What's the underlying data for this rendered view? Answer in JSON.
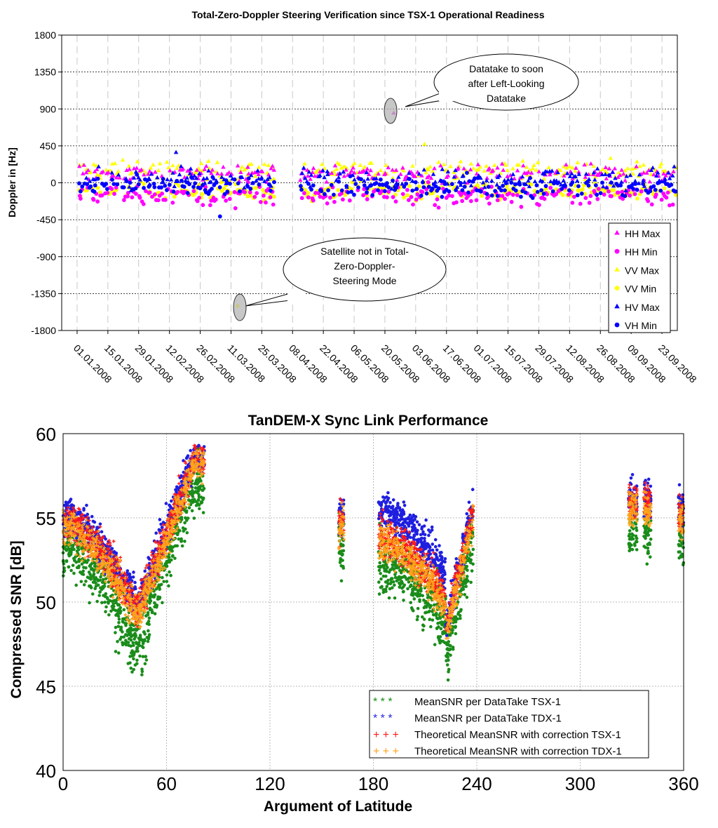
{
  "chart_data": [
    {
      "type": "scatter",
      "title": "Total-Zero-Doppler Steering Verification since TSX-1 Operational Readiness",
      "ylabel": "Doppler in [Hz]",
      "xlabel": "",
      "ylim": [
        -1800,
        1800
      ],
      "yticks": [
        "1800",
        "1350",
        "900",
        "450",
        "0",
        "-450",
        "-900",
        "-1350",
        "-1800"
      ],
      "xticks": [
        "01.01.2008",
        "15.01.2008",
        "29.01.2008",
        "12.02.2008",
        "26.02.2008",
        "11.03.2008",
        "25.03.2008",
        "08.04.2008",
        "22.04.2008",
        "06.05.2008",
        "20.05.2008",
        "03.06.2008",
        "17.06.2008",
        "01.07.2008",
        "15.07.2008",
        "29.07.2008",
        "12.08.2008",
        "26.08.2008",
        "09.09.2008",
        "23.09.2008"
      ],
      "x_range": [
        "25.12.2007",
        "30.09.2008"
      ],
      "data_gap": [
        "31.03.2008",
        "11.04.2008"
      ],
      "grid": true,
      "legend_position": "bottom-right",
      "series": [
        {
          "name": "HH Max",
          "color": "#ff00ff",
          "marker": "triangle",
          "typical_range": [
            30,
            210
          ]
        },
        {
          "name": "HH Min",
          "color": "#ff00ff",
          "marker": "circle",
          "typical_range": [
            -260,
            -40
          ]
        },
        {
          "name": "VV Max",
          "color": "#ffff00",
          "marker": "triangle",
          "typical_range": [
            40,
            260
          ]
        },
        {
          "name": "VV Min",
          "color": "#ffff00",
          "marker": "circle",
          "typical_range": [
            -200,
            -10
          ]
        },
        {
          "name": "HV Max",
          "color": "#0000ff",
          "marker": "triangle",
          "typical_range": [
            -60,
            170
          ]
        },
        {
          "name": "VH Min",
          "color": "#0000ff",
          "marker": "circle",
          "typical_range": [
            -160,
            60
          ]
        }
      ],
      "outliers": [
        {
          "series": "HH Max",
          "date": "24.05.2008",
          "value": 850
        },
        {
          "series": "VV Max",
          "date": "07.06.2008",
          "value": 470
        },
        {
          "series": "VV Min",
          "date": "14.03.2008",
          "value": -1500
        },
        {
          "series": "HV Max",
          "date": "15.02.2008",
          "value": 370
        },
        {
          "series": "VH Min",
          "date": "06.03.2008",
          "value": -410
        },
        {
          "series": "HH Min",
          "date": "13.03.2008",
          "value": -310
        }
      ],
      "annotations": [
        {
          "text_lines": [
            "Datatake to soon",
            "after Left-Looking",
            "Datatake"
          ],
          "target_date": "24.05.2008",
          "target_value": 850
        },
        {
          "text_lines": [
            "Satellite not in Total-",
            "Zero-Doppler-",
            "Steering Mode"
          ],
          "target_date": "14.03.2008",
          "target_value": -1500
        }
      ]
    },
    {
      "type": "scatter",
      "title": "TanDEM-X Sync Link Performance",
      "xlabel": "Argument of Latitude",
      "ylabel": "Compressed SNR [dB]",
      "xlim": [
        0,
        360
      ],
      "ylim": [
        40,
        60
      ],
      "xticks": [
        "0",
        "60",
        "120",
        "180",
        "240",
        "300",
        "360"
      ],
      "yticks": [
        "60",
        "55",
        "50",
        "45",
        "40"
      ],
      "grid": true,
      "legend_position": "bottom-right",
      "legend_marker": "*  *  *",
      "legend_marker_cross": "+  +  +",
      "series": [
        {
          "name": "MeanSNR per DataTake TSX-1",
          "color": "#1a8c1a",
          "marker": "star"
        },
        {
          "name": "MeanSNR per DataTake TDX-1",
          "color": "#1f1fe0",
          "marker": "star"
        },
        {
          "name": "Theoretical MeanSNR with correction TSX-1",
          "color": "#ff1a1a",
          "marker": "plus"
        },
        {
          "name": "Theoretical MeanSNR with correction TDX-1",
          "color": "#ffa31a",
          "marker": "plus"
        }
      ],
      "trend_points": [
        {
          "x": 0,
          "y": 54.5
        },
        {
          "x": 20,
          "y": 53.2
        },
        {
          "x": 35,
          "y": 51.0
        },
        {
          "x": 43,
          "y": 49.0
        },
        {
          "x": 50,
          "y": 53.0
        },
        {
          "x": 60,
          "y": 56.5
        },
        {
          "x": 75,
          "y": 58.5
        },
        {
          "x": 82,
          "y": 58.0
        },
        {
          "x": 162,
          "y": 54.5
        },
        {
          "x": 183,
          "y": 53.5
        },
        {
          "x": 200,
          "y": 52.5
        },
        {
          "x": 220,
          "y": 49.8
        },
        {
          "x": 232,
          "y": 52.0
        },
        {
          "x": 237,
          "y": 55.0
        },
        {
          "x": 330,
          "y": 55.8
        },
        {
          "x": 340,
          "y": 55.5
        },
        {
          "x": 358,
          "y": 55.0
        }
      ]
    }
  ]
}
